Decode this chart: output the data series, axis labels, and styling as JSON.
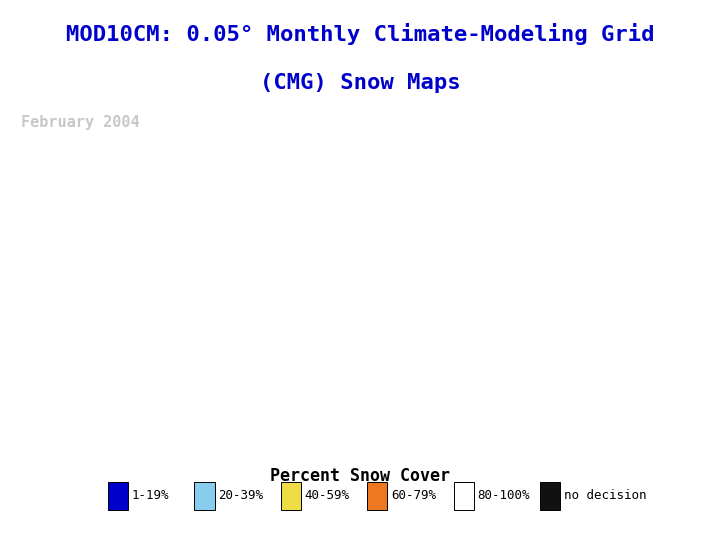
{
  "title_line1": "MOD10CM: 0.05° Monthly Climate-Modeling Grid",
  "title_line2": "(CMG) Snow Maps",
  "title_color": "#0000CC",
  "title_fontsize": 16,
  "subtitle": "February 2004",
  "subtitle_color": "#C8C8C8",
  "subtitle_fontsize": 11,
  "background_color": "#FFFFFF",
  "map_bg_color": "#8888AA",
  "legend_title": "Percent Snow Cover",
  "legend_title_fontsize": 12,
  "legend_fontsize": 9,
  "legend_items": [
    {
      "label": "1-19%",
      "color": "#0000CC"
    },
    {
      "label": "20-39%",
      "color": "#88CCEE"
    },
    {
      "label": "40-59%",
      "color": "#EEDD44"
    },
    {
      "label": "60-79%",
      "color": "#EE7722"
    },
    {
      "label": "80-100%",
      "color": "#FFFFFF"
    },
    {
      "label": "no decision",
      "color": "#111111"
    }
  ],
  "map_border_color": "#000000",
  "map_border_linewidth": 0.5,
  "ocean_color": "#8899AA",
  "land_color": "#7A9977",
  "snow_white_color": "#FFFFFF",
  "snow_gray_color": "#AAAAAA",
  "figsize": [
    7.2,
    5.4
  ],
  "dpi": 100
}
